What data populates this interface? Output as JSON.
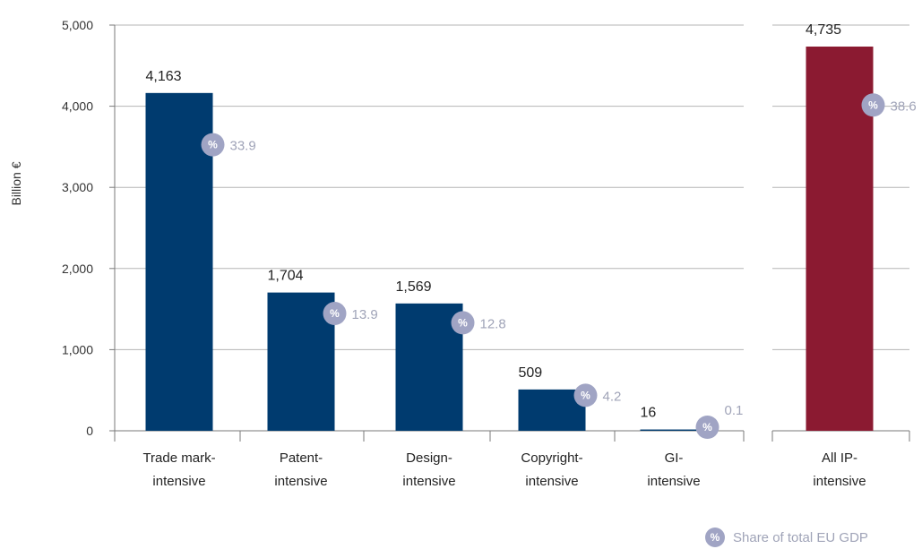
{
  "chart_data": {
    "type": "bar",
    "ylabel": "Billion €",
    "ylim": [
      0,
      5000
    ],
    "yticks": [
      "0",
      "1,000",
      "2,000",
      "3,000",
      "4,000",
      "5,000"
    ],
    "ytick_values": [
      0,
      1000,
      2000,
      3000,
      4000,
      5000
    ],
    "grid": true,
    "categories": [
      [
        "Trade mark-",
        "intensive"
      ],
      [
        "Patent-",
        "intensive"
      ],
      [
        "Design-",
        "intensive"
      ],
      [
        "Copyright-",
        "intensive"
      ],
      [
        "GI-",
        "intensive"
      ],
      [
        "All IP-",
        "intensive"
      ]
    ],
    "values": [
      4163,
      1704,
      1569,
      509,
      16,
      4735
    ],
    "value_labels": [
      "4,163",
      "1,704",
      "1,569",
      "509",
      "16",
      "4,735"
    ],
    "gdp_share": [
      33.9,
      13.9,
      12.8,
      4.2,
      0.1,
      38.6
    ],
    "gdp_share_labels": [
      "33.9",
      "13.9",
      "12.8",
      "4.2",
      "0.1",
      "38.6"
    ],
    "colors": [
      "#003b6f",
      "#003b6f",
      "#003b6f",
      "#003b6f",
      "#003b6f",
      "#8b1a31"
    ],
    "marker_color": "#a0a4c4",
    "marker_symbol": "%",
    "legend": {
      "label": "Share of total EU GDP",
      "position": "bottom-right"
    }
  }
}
